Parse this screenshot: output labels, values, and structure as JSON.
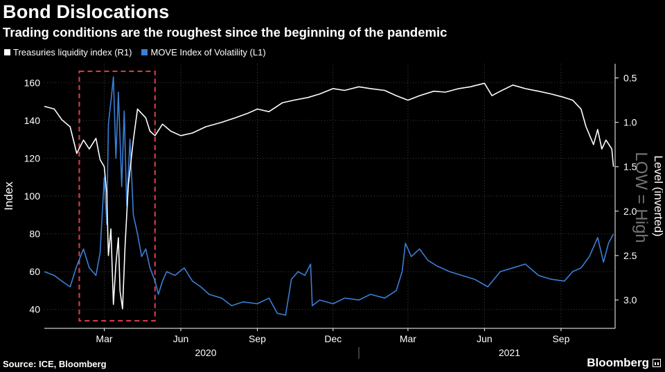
{
  "title": "Bond Dislocations",
  "subtitle": "Trading conditions are the roughest since the beginning of the pandemic",
  "legend": [
    {
      "label": "Treasuries liquidity index (R1)",
      "color": "#ffffff"
    },
    {
      "label": "MOVE Index of Volatility (L1)",
      "color": "#3b7fd6"
    }
  ],
  "source": "Source: ICE, Bloomberg",
  "brand": "Bloomberg",
  "colors": {
    "background": "#000000",
    "move": "#3b7fd6",
    "liquidity": "#ffffff",
    "grid": "#444444",
    "highlight_box": "#d23a4a"
  },
  "chart_data": {
    "type": "line",
    "left_axis": {
      "label": "Index",
      "ticks": [
        40,
        60,
        80,
        100,
        120,
        140,
        160
      ],
      "range": [
        30,
        170
      ]
    },
    "right_axis": {
      "label": "Level (inverted)",
      "ticks": [
        "0.5",
        "1.0",
        "1.5",
        "2.0",
        "2.5",
        "3.0"
      ],
      "tick_values": [
        0.5,
        1.0,
        1.5,
        2.0,
        2.5,
        3.0
      ],
      "inverted": true,
      "range": [
        0.34,
        3.32
      ]
    },
    "overlay_annotation": "LOW = High",
    "x_month_labels": [
      "Mar",
      "Jun",
      "Sep",
      "Dec",
      "Mar",
      "Jun",
      "Sep"
    ],
    "x_month_dates": [
      "2020-03-01",
      "2020-06-01",
      "2020-09-01",
      "2020-12-01",
      "2021-03-01",
      "2021-06-01",
      "2021-09-01"
    ],
    "x_year_labels": [
      "2020",
      "2021"
    ],
    "x_year_centers": [
      "2020-07-01",
      "2021-07-01"
    ],
    "x_year_separator": "2021-01-01",
    "x_range": [
      "2019-12-20",
      "2021-11-05"
    ],
    "highlight_box": {
      "x_start": "2020-01-31",
      "x_end": "2020-05-01",
      "y_top": 166,
      "y_bottom": 34
    },
    "series": [
      {
        "name": "MOVE Index of Volatility (L1)",
        "axis": "left",
        "points": [
          [
            "2019-12-20",
            60
          ],
          [
            "2020-01-01",
            58
          ],
          [
            "2020-01-10",
            55
          ],
          [
            "2020-01-20",
            52
          ],
          [
            "2020-01-28",
            63
          ],
          [
            "2020-02-05",
            72
          ],
          [
            "2020-02-12",
            62
          ],
          [
            "2020-02-20",
            58
          ],
          [
            "2020-02-25",
            70
          ],
          [
            "2020-03-01",
            110
          ],
          [
            "2020-03-04",
            85
          ],
          [
            "2020-03-06",
            138
          ],
          [
            "2020-03-09",
            150
          ],
          [
            "2020-03-12",
            163
          ],
          [
            "2020-03-15",
            120
          ],
          [
            "2020-03-18",
            155
          ],
          [
            "2020-03-22",
            105
          ],
          [
            "2020-03-25",
            145
          ],
          [
            "2020-03-28",
            95
          ],
          [
            "2020-04-01",
            130
          ],
          [
            "2020-04-05",
            90
          ],
          [
            "2020-04-10",
            80
          ],
          [
            "2020-04-15",
            68
          ],
          [
            "2020-04-20",
            72
          ],
          [
            "2020-04-25",
            62
          ],
          [
            "2020-05-01",
            55
          ],
          [
            "2020-05-05",
            48
          ],
          [
            "2020-05-10",
            55
          ],
          [
            "2020-05-15",
            60
          ],
          [
            "2020-05-25",
            58
          ],
          [
            "2020-06-05",
            62
          ],
          [
            "2020-06-15",
            55
          ],
          [
            "2020-06-25",
            52
          ],
          [
            "2020-07-05",
            48
          ],
          [
            "2020-07-20",
            46
          ],
          [
            "2020-08-01",
            42
          ],
          [
            "2020-08-15",
            44
          ],
          [
            "2020-09-01",
            43
          ],
          [
            "2020-09-15",
            46
          ],
          [
            "2020-09-25",
            38
          ],
          [
            "2020-10-05",
            37
          ],
          [
            "2020-10-12",
            56
          ],
          [
            "2020-10-20",
            60
          ],
          [
            "2020-10-28",
            58
          ],
          [
            "2020-11-04",
            64
          ],
          [
            "2020-11-06",
            42
          ],
          [
            "2020-11-15",
            45
          ],
          [
            "2020-12-01",
            43
          ],
          [
            "2020-12-15",
            46
          ],
          [
            "2021-01-01",
            45
          ],
          [
            "2021-01-15",
            48
          ],
          [
            "2021-02-01",
            46
          ],
          [
            "2021-02-15",
            50
          ],
          [
            "2021-02-22",
            60
          ],
          [
            "2021-02-26",
            75
          ],
          [
            "2021-03-05",
            68
          ],
          [
            "2021-03-15",
            72
          ],
          [
            "2021-03-25",
            66
          ],
          [
            "2021-04-05",
            63
          ],
          [
            "2021-04-20",
            60
          ],
          [
            "2021-05-05",
            58
          ],
          [
            "2021-05-20",
            56
          ],
          [
            "2021-06-05",
            52
          ],
          [
            "2021-06-20",
            60
          ],
          [
            "2021-07-05",
            62
          ],
          [
            "2021-07-20",
            64
          ],
          [
            "2021-08-05",
            58
          ],
          [
            "2021-08-20",
            56
          ],
          [
            "2021-09-05",
            55
          ],
          [
            "2021-09-15",
            60
          ],
          [
            "2021-09-25",
            62
          ],
          [
            "2021-10-05",
            68
          ],
          [
            "2021-10-15",
            78
          ],
          [
            "2021-10-22",
            65
          ],
          [
            "2021-10-28",
            75
          ],
          [
            "2021-11-03",
            80
          ]
        ]
      },
      {
        "name": "Treasuries liquidity index (R1)",
        "axis": "right",
        "points": [
          [
            "2019-12-20",
            0.82
          ],
          [
            "2020-01-01",
            0.85
          ],
          [
            "2020-01-10",
            0.97
          ],
          [
            "2020-01-20",
            1.05
          ],
          [
            "2020-01-28",
            1.35
          ],
          [
            "2020-02-05",
            1.2
          ],
          [
            "2020-02-12",
            1.3
          ],
          [
            "2020-02-20",
            1.18
          ],
          [
            "2020-02-25",
            1.42
          ],
          [
            "2020-03-01",
            1.5
          ],
          [
            "2020-03-04",
            1.8
          ],
          [
            "2020-03-06",
            2.5
          ],
          [
            "2020-03-09",
            2.2
          ],
          [
            "2020-03-12",
            3.05
          ],
          [
            "2020-03-15",
            2.6
          ],
          [
            "2020-03-18",
            2.3
          ],
          [
            "2020-03-20",
            2.9
          ],
          [
            "2020-03-23",
            3.1
          ],
          [
            "2020-03-26",
            2.4
          ],
          [
            "2020-03-30",
            1.7
          ],
          [
            "2020-04-05",
            1.2
          ],
          [
            "2020-04-10",
            0.85
          ],
          [
            "2020-04-15",
            0.9
          ],
          [
            "2020-04-20",
            0.95
          ],
          [
            "2020-04-25",
            1.1
          ],
          [
            "2020-05-01",
            1.15
          ],
          [
            "2020-05-10",
            1.02
          ],
          [
            "2020-05-20",
            1.1
          ],
          [
            "2020-06-01",
            1.15
          ],
          [
            "2020-06-15",
            1.12
          ],
          [
            "2020-07-01",
            1.05
          ],
          [
            "2020-07-20",
            1.0
          ],
          [
            "2020-08-05",
            0.95
          ],
          [
            "2020-08-20",
            0.9
          ],
          [
            "2020-09-01",
            0.85
          ],
          [
            "2020-09-15",
            0.88
          ],
          [
            "2020-10-01",
            0.78
          ],
          [
            "2020-10-15",
            0.75
          ],
          [
            "2020-11-01",
            0.72
          ],
          [
            "2020-11-15",
            0.68
          ],
          [
            "2020-12-01",
            0.62
          ],
          [
            "2020-12-15",
            0.64
          ],
          [
            "2021-01-01",
            0.6
          ],
          [
            "2021-01-15",
            0.62
          ],
          [
            "2021-02-01",
            0.64
          ],
          [
            "2021-02-15",
            0.7
          ],
          [
            "2021-03-01",
            0.75
          ],
          [
            "2021-03-15",
            0.7
          ],
          [
            "2021-04-01",
            0.65
          ],
          [
            "2021-04-15",
            0.66
          ],
          [
            "2021-05-01",
            0.62
          ],
          [
            "2021-05-15",
            0.6
          ],
          [
            "2021-06-01",
            0.56
          ],
          [
            "2021-06-10",
            0.7
          ],
          [
            "2021-06-20",
            0.65
          ],
          [
            "2021-07-05",
            0.58
          ],
          [
            "2021-07-20",
            0.62
          ],
          [
            "2021-08-05",
            0.65
          ],
          [
            "2021-08-20",
            0.68
          ],
          [
            "2021-09-05",
            0.72
          ],
          [
            "2021-09-15",
            0.75
          ],
          [
            "2021-09-25",
            0.85
          ],
          [
            "2021-10-01",
            1.05
          ],
          [
            "2021-10-10",
            1.25
          ],
          [
            "2021-10-15",
            1.08
          ],
          [
            "2021-10-20",
            1.3
          ],
          [
            "2021-10-25",
            1.2
          ],
          [
            "2021-11-01",
            1.3
          ],
          [
            "2021-11-03",
            1.5
          ]
        ]
      }
    ]
  }
}
